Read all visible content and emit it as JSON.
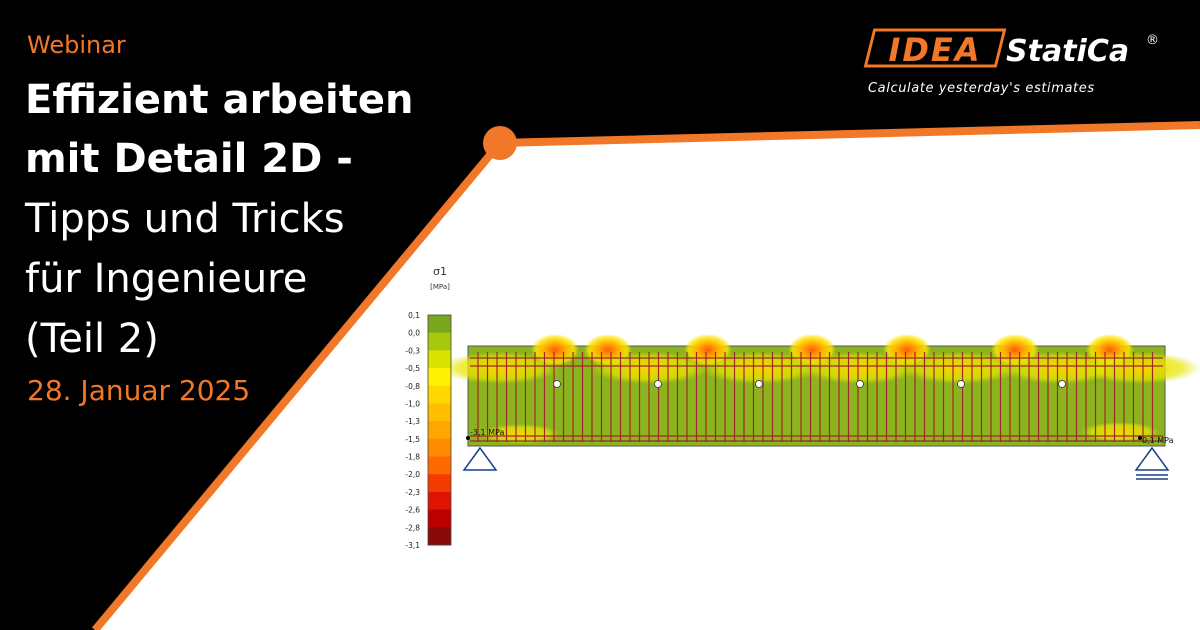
{
  "header": {
    "kicker": "Webinar",
    "title_lines": [
      "Effizient arbeiten",
      "mit Detail 2D -"
    ],
    "subtitle_lines": [
      "Tipps und Tricks",
      "für Ingenieure",
      "(Teil 2)"
    ],
    "date": "28. Januar 2025"
  },
  "logo": {
    "mark": "IDEA",
    "name": "StatiCa",
    "registered": "®",
    "tagline": "Calculate yesterday's estimates"
  },
  "figure": {
    "legend": {
      "title": "σ1",
      "unit": "[MPa]",
      "labels": [
        "0,1",
        "0,0",
        "-0,3",
        "-0,5",
        "-0,8",
        "-1,0",
        "-1,3",
        "-1,5",
        "-1,8",
        "-2,0",
        "-2,3",
        "-2,6",
        "-2,8",
        "-3,1"
      ],
      "colors": [
        "#7aa81c",
        "#a8c80e",
        "#d8e400",
        "#fff200",
        "#ffd800",
        "#ffbf00",
        "#ffa600",
        "#ff8c00",
        "#ff6a00",
        "#f43c00",
        "#e01400",
        "#bc0000",
        "#8a0a0a"
      ]
    },
    "left_label": "-3,1 MPa",
    "right_label": "0,1 MPa"
  }
}
